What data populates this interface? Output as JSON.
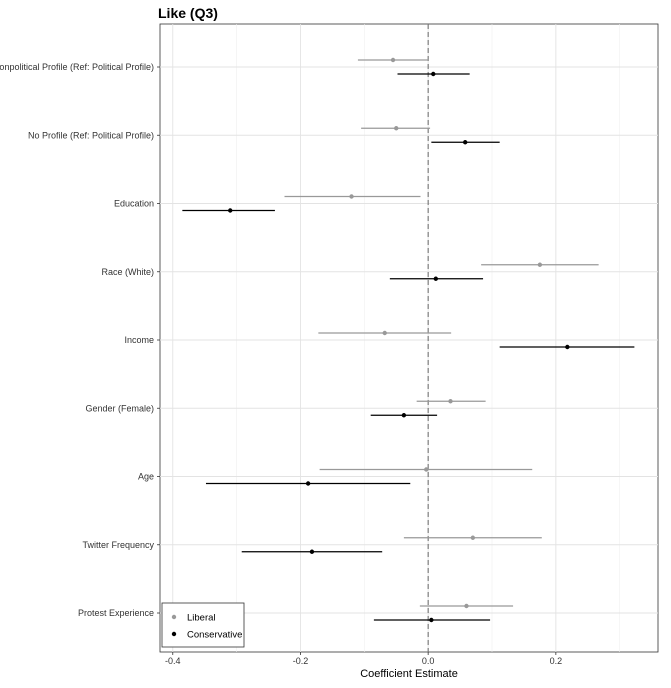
{
  "chart_data": {
    "type": "scatter",
    "title": "Like (Q3)",
    "xlabel": "Coefficient Estimate",
    "ylabel": "",
    "xlim": [
      -0.42,
      0.36
    ],
    "xticks": [
      -0.4,
      -0.2,
      0.0,
      0.2
    ],
    "xtick_labels": [
      "-0.4",
      "-0.2",
      "0.0",
      "0.2"
    ],
    "reference_line": 0,
    "grid": true,
    "legend_position": "bottom-left",
    "categories": [
      "Nonpolitical Profile (Ref: Political Profile)",
      "No Profile (Ref: Political Profile)",
      "Education",
      "Race (White)",
      "Income",
      "Gender (Female)",
      "Age",
      "Twitter Frequency",
      "Protest Experience"
    ],
    "series": [
      {
        "name": "Liberal",
        "color": "#999999",
        "points": [
          {
            "estimate": -0.055,
            "low": -0.11,
            "high": 0.0
          },
          {
            "estimate": -0.05,
            "low": -0.105,
            "high": 0.003
          },
          {
            "estimate": -0.12,
            "low": -0.225,
            "high": -0.012
          },
          {
            "estimate": 0.175,
            "low": 0.083,
            "high": 0.267
          },
          {
            "estimate": -0.068,
            "low": -0.172,
            "high": 0.036
          },
          {
            "estimate": 0.035,
            "low": -0.018,
            "high": 0.09
          },
          {
            "estimate": -0.003,
            "low": -0.17,
            "high": 0.163
          },
          {
            "estimate": 0.07,
            "low": -0.038,
            "high": 0.178
          },
          {
            "estimate": 0.06,
            "low": -0.013,
            "high": 0.133
          }
        ]
      },
      {
        "name": "Conservative",
        "color": "#000000",
        "points": [
          {
            "estimate": 0.008,
            "low": -0.048,
            "high": 0.065
          },
          {
            "estimate": 0.058,
            "low": 0.005,
            "high": 0.112
          },
          {
            "estimate": -0.31,
            "low": -0.385,
            "high": -0.24
          },
          {
            "estimate": 0.012,
            "low": -0.06,
            "high": 0.086
          },
          {
            "estimate": 0.218,
            "low": 0.112,
            "high": 0.323
          },
          {
            "estimate": -0.038,
            "low": -0.09,
            "high": 0.014
          },
          {
            "estimate": -0.188,
            "low": -0.348,
            "high": -0.028
          },
          {
            "estimate": -0.182,
            "low": -0.292,
            "high": -0.072
          },
          {
            "estimate": 0.005,
            "low": -0.085,
            "high": 0.097
          }
        ]
      }
    ]
  }
}
